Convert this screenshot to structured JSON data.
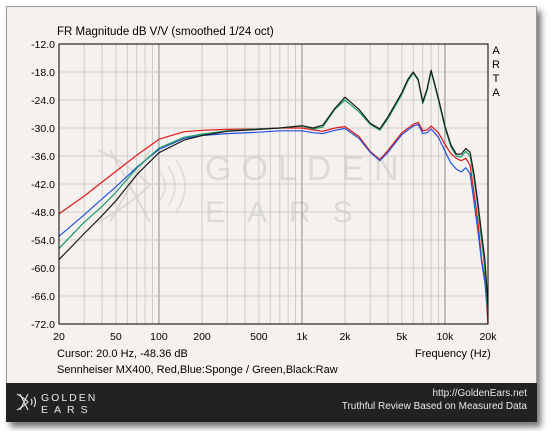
{
  "chart_data": {
    "type": "line",
    "title": "FR Magnitude dB V/V (smoothed 1/24 oct)",
    "side_label": "ARTA",
    "xlabel": "Frequency (Hz)",
    "ylabel": "",
    "x_scale": "log",
    "xlim": [
      20,
      20000
    ],
    "ylim": [
      -72,
      -12
    ],
    "grid": true,
    "x_tick_labels": [
      {
        "value": 20,
        "label": "20"
      },
      {
        "value": 50,
        "label": "50"
      },
      {
        "value": 100,
        "label": "100"
      },
      {
        "value": 200,
        "label": "200"
      },
      {
        "value": 500,
        "label": "500"
      },
      {
        "value": 1000,
        "label": "1k"
      },
      {
        "value": 2000,
        "label": "2k"
      },
      {
        "value": 5000,
        "label": "5k"
      },
      {
        "value": 10000,
        "label": "10k"
      },
      {
        "value": 20000,
        "label": "20k"
      }
    ],
    "y_ticks": [
      -12,
      -18,
      -24,
      -30,
      -36,
      -42,
      -48,
      -54,
      -60,
      -66,
      -72
    ],
    "y_tick_labels": [
      "-12.0",
      "-18.0",
      "-24.0",
      "-30.0",
      "-36.0",
      "-42.0",
      "-48.0",
      "-54.0",
      "-60.0",
      "-66.0",
      "-72.0"
    ],
    "cursor_text": "Cursor: 20.0 Hz, -48.36 dB",
    "legend_text": "Sennheiser MX400, Red,Blue:Sponge / Green,Black:Raw",
    "series": [
      {
        "color": "#e01818",
        "x": [
          20,
          30,
          40,
          50,
          70,
          100,
          150,
          200,
          300,
          500,
          700,
          1000,
          1200,
          1400,
          1700,
          2000,
          2500,
          3000,
          3500,
          4000,
          5000,
          6000,
          6500,
          7000,
          7500,
          8000,
          9000,
          10000,
          11000,
          12000,
          13000,
          14000,
          15000,
          16000,
          17000,
          18000,
          19000,
          20000
        ],
        "y": [
          -48.4,
          -44.6,
          -41.6,
          -39.3,
          -35.8,
          -32.4,
          -30.8,
          -30.5,
          -30.3,
          -30.2,
          -30.0,
          -30.0,
          -30.4,
          -30.7,
          -30.0,
          -29.7,
          -31.8,
          -35.0,
          -36.8,
          -34.8,
          -31.0,
          -29.2,
          -28.8,
          -30.6,
          -30.4,
          -29.6,
          -31.0,
          -33.5,
          -35.5,
          -36.5,
          -37.0,
          -36.5,
          -38.0,
          -44.0,
          -50.0,
          -58.0,
          -62.0,
          -72.0
        ]
      },
      {
        "color": "#2850d8",
        "x": [
          20,
          30,
          40,
          50,
          70,
          100,
          150,
          200,
          300,
          500,
          700,
          1000,
          1200,
          1400,
          1700,
          2000,
          2500,
          3000,
          3500,
          4000,
          5000,
          6000,
          6500,
          7000,
          7500,
          8000,
          9000,
          10000,
          11000,
          12000,
          13000,
          14000,
          15000,
          16000,
          17000,
          18000,
          19000,
          20000
        ],
        "y": [
          -53.2,
          -48.6,
          -45.2,
          -42.6,
          -38.4,
          -34.6,
          -32.2,
          -31.6,
          -31.2,
          -30.9,
          -30.6,
          -30.6,
          -31.0,
          -31.2,
          -30.5,
          -30.1,
          -32.2,
          -35.2,
          -37.0,
          -35.2,
          -31.4,
          -29.6,
          -29.2,
          -31.2,
          -31.0,
          -30.2,
          -32.0,
          -35.0,
          -37.5,
          -38.8,
          -39.4,
          -38.5,
          -39.8,
          -46.0,
          -52.0,
          -58.5,
          -63.0,
          -70.0
        ]
      },
      {
        "color": "#1a9a6a",
        "x": [
          20,
          30,
          40,
          50,
          70,
          100,
          150,
          200,
          300,
          500,
          700,
          1000,
          1200,
          1400,
          1700,
          2000,
          2500,
          3000,
          3500,
          4000,
          5000,
          5500,
          6000,
          6500,
          7000,
          7500,
          8000,
          9000,
          10000,
          11000,
          12000,
          13000,
          14000,
          15000,
          16000,
          17000,
          18000,
          19000,
          20000
        ],
        "y": [
          -55.8,
          -50.2,
          -46.8,
          -43.8,
          -38.6,
          -34.3,
          -32.0,
          -31.3,
          -30.6,
          -30.2,
          -30.0,
          -29.6,
          -30.2,
          -29.8,
          -26.0,
          -24.0,
          -26.5,
          -29.2,
          -30.5,
          -28.0,
          -22.8,
          -20.0,
          -18.2,
          -19.8,
          -24.8,
          -22.0,
          -17.9,
          -24.0,
          -30.0,
          -34.0,
          -36.0,
          -36.2,
          -35.0,
          -36.0,
          -41.0,
          -47.0,
          -54.0,
          -60.0,
          -70.0
        ]
      },
      {
        "color": "#1a1a1a",
        "x": [
          20,
          30,
          40,
          50,
          70,
          100,
          150,
          200,
          300,
          500,
          700,
          1000,
          1200,
          1400,
          1700,
          2000,
          2500,
          3000,
          3500,
          4000,
          5000,
          5500,
          6000,
          6500,
          7000,
          7500,
          8000,
          9000,
          10000,
          11000,
          12000,
          13000,
          14000,
          15000,
          16000,
          17000,
          18000,
          19000,
          20000
        ],
        "y": [
          -58.2,
          -52.6,
          -48.8,
          -45.6,
          -40.0,
          -35.3,
          -32.6,
          -31.6,
          -30.7,
          -30.3,
          -30.0,
          -29.5,
          -30.0,
          -29.4,
          -25.8,
          -23.4,
          -26.0,
          -29.0,
          -30.2,
          -27.6,
          -22.4,
          -19.6,
          -18.0,
          -19.6,
          -24.4,
          -21.6,
          -17.6,
          -23.6,
          -29.6,
          -33.6,
          -35.6,
          -35.6,
          -34.4,
          -35.2,
          -40.0,
          -46.0,
          -52.5,
          -58.0,
          -68.0
        ]
      }
    ]
  },
  "footer": {
    "logo_text": "GOLDEN EARS",
    "site": "http://GoldenEars.net",
    "tagline": "Truthful Review Based on Measured Data"
  }
}
